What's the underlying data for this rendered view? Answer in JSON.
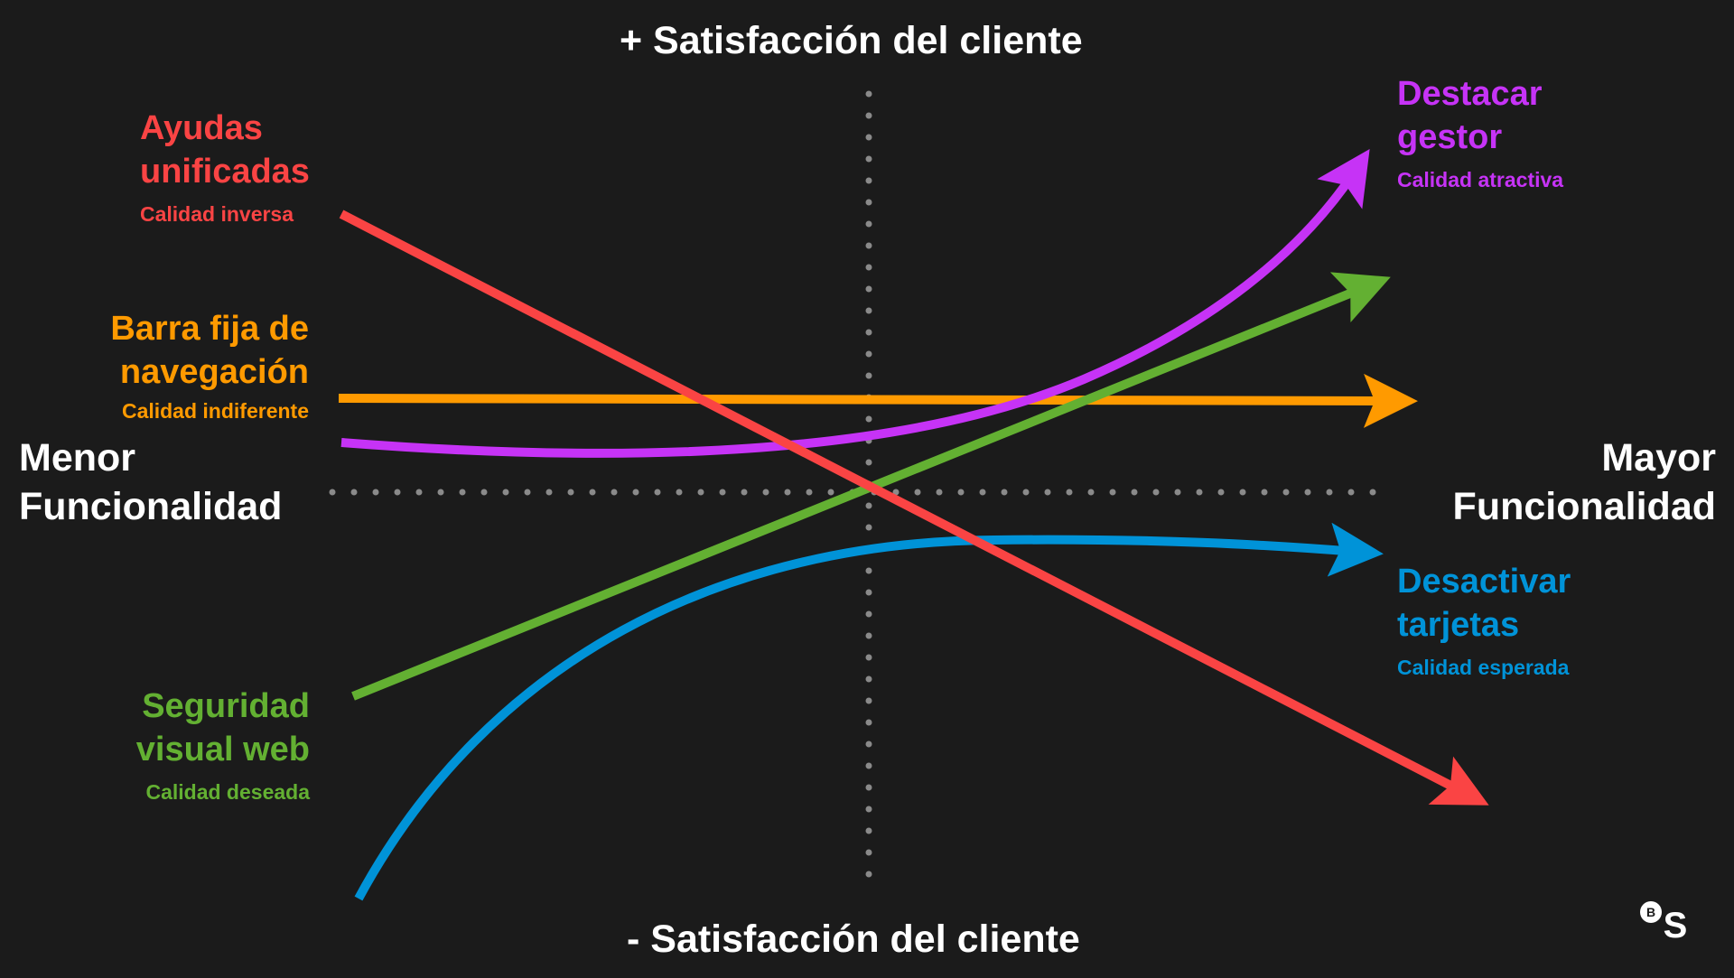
{
  "axes": {
    "top": "+ Satisfacción del cliente",
    "bottom": "- Satisfacción del cliente",
    "left": [
      "Menor",
      "Funcionalidad"
    ],
    "right": [
      "Mayor",
      "Funcionalidad"
    ]
  },
  "categories": [
    {
      "id": "inversa",
      "title": [
        "Ayudas",
        "unificadas"
      ],
      "subtitle": "Calidad inversa",
      "color": "#fa4444"
    },
    {
      "id": "indiferente",
      "title": [
        "Barra fija de",
        "navegación"
      ],
      "subtitle": "Calidad indiferente",
      "color": "#ff9a00"
    },
    {
      "id": "deseada",
      "title": [
        "Seguridad",
        "visual web"
      ],
      "subtitle": "Calidad deseada",
      "color": "#63b032"
    },
    {
      "id": "atractiva",
      "title": [
        "Destacar",
        "gestor"
      ],
      "subtitle": "Calidad atractiva",
      "color": "#c633f6"
    },
    {
      "id": "esperada",
      "title": [
        "Desactivar",
        "tarjetas"
      ],
      "subtitle": "Calidad esperada",
      "color": "#0093d8"
    }
  ],
  "logo": {
    "icon": "bs-logo-icon",
    "letters": [
      "B",
      "S"
    ]
  }
}
